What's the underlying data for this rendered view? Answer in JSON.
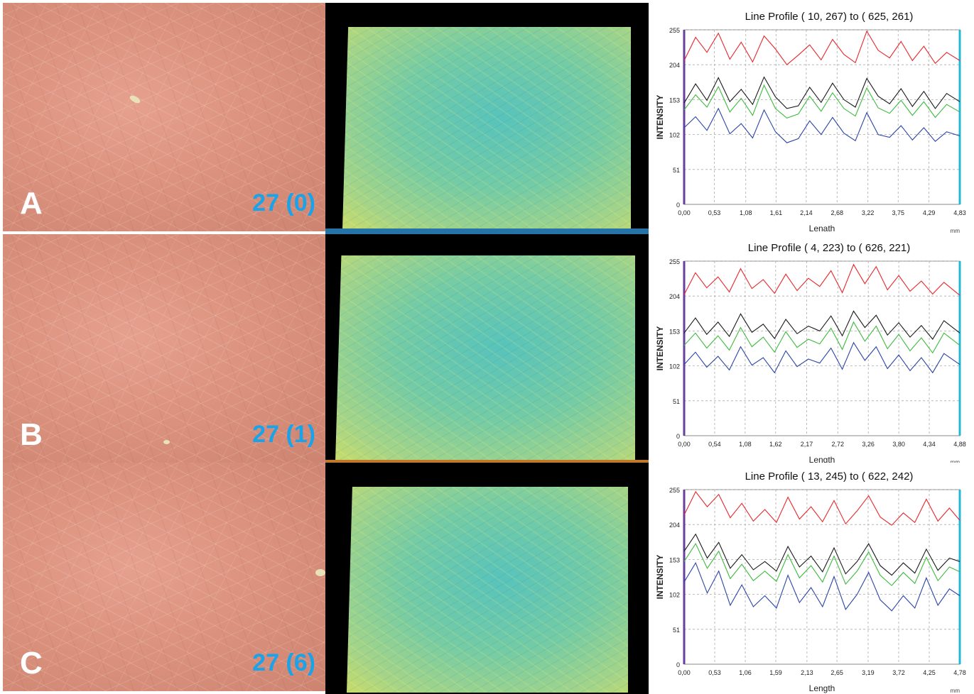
{
  "panels": [
    {
      "letter": "A",
      "sample": "27 (0)"
    },
    {
      "letter": "B",
      "sample": "27 (1)"
    },
    {
      "letter": "C",
      "sample": "27 (6)"
    }
  ],
  "colors": {
    "red_channel": "#e8262a",
    "green_channel": "#3cba3c",
    "blue_channel": "#2a44a8",
    "black_trace": "#1a1a1a",
    "label_blue": "#1aa3e8"
  },
  "chart_data": [
    {
      "type": "line",
      "title": "Line Profile ( 10, 267) to ( 625, 261)",
      "xlabel": "Lenath",
      "ylabel": "INTENSITY",
      "x_unit": "mm",
      "xticks": [
        "0,00",
        "0,53",
        "1,08",
        "1,61",
        "2,14",
        "2,68",
        "3,22",
        "3,75",
        "4,29",
        "4,83"
      ],
      "yticks": [
        "0",
        "51",
        "102",
        "153",
        "204",
        "255"
      ],
      "xlim": [
        0,
        4.83
      ],
      "ylim": [
        0,
        255
      ],
      "grid": true,
      "x": [
        0.0,
        0.2,
        0.4,
        0.6,
        0.8,
        1.0,
        1.2,
        1.4,
        1.6,
        1.8,
        2.0,
        2.2,
        2.4,
        2.6,
        2.8,
        3.0,
        3.2,
        3.4,
        3.6,
        3.8,
        4.0,
        4.2,
        4.4,
        4.6,
        4.83
      ],
      "series": [
        {
          "color": "#e8262a",
          "values": [
            210,
            244,
            222,
            250,
            212,
            237,
            208,
            246,
            227,
            204,
            218,
            233,
            211,
            241,
            219,
            207,
            253,
            225,
            214,
            238,
            210,
            231,
            206,
            222,
            210
          ]
        },
        {
          "color": "#1a1a1a",
          "values": [
            148,
            176,
            152,
            185,
            150,
            168,
            146,
            186,
            157,
            140,
            144,
            171,
            149,
            177,
            153,
            142,
            184,
            158,
            147,
            169,
            143,
            165,
            140,
            162,
            150
          ]
        },
        {
          "color": "#3cba3c",
          "values": [
            138,
            160,
            142,
            172,
            135,
            155,
            130,
            174,
            140,
            126,
            132,
            158,
            136,
            163,
            140,
            129,
            170,
            141,
            133,
            152,
            130,
            150,
            127,
            146,
            135
          ]
        },
        {
          "color": "#2a44a8",
          "values": [
            112,
            128,
            108,
            140,
            103,
            118,
            97,
            138,
            106,
            90,
            96,
            122,
            102,
            127,
            104,
            93,
            134,
            102,
            98,
            115,
            94,
            112,
            92,
            106,
            100
          ]
        }
      ]
    },
    {
      "type": "line",
      "title": "Line Profile ( 4, 223) to ( 626, 221)",
      "xlabel": "Length",
      "ylabel": "INTENSITY",
      "x_unit": "mm",
      "xticks": [
        "0,00",
        "0,54",
        "1,08",
        "1,62",
        "2,17",
        "2,72",
        "3,26",
        "3,80",
        "4,34",
        "4,88"
      ],
      "yticks": [
        "0",
        "51",
        "102",
        "153",
        "204",
        "255"
      ],
      "xlim": [
        0,
        4.88
      ],
      "ylim": [
        0,
        255
      ],
      "grid": true,
      "x": [
        0.0,
        0.2,
        0.4,
        0.6,
        0.8,
        1.0,
        1.2,
        1.4,
        1.6,
        1.8,
        2.0,
        2.2,
        2.4,
        2.6,
        2.8,
        3.0,
        3.2,
        3.4,
        3.6,
        3.8,
        4.0,
        4.2,
        4.4,
        4.6,
        4.88
      ],
      "series": [
        {
          "color": "#e8262a",
          "values": [
            206,
            238,
            216,
            232,
            210,
            244,
            215,
            228,
            208,
            236,
            212,
            230,
            218,
            241,
            209,
            250,
            222,
            247,
            213,
            234,
            211,
            226,
            207,
            224,
            205
          ]
        },
        {
          "color": "#1a1a1a",
          "values": [
            150,
            172,
            148,
            166,
            145,
            178,
            151,
            163,
            142,
            170,
            149,
            160,
            153,
            175,
            146,
            182,
            158,
            176,
            147,
            165,
            144,
            161,
            141,
            168,
            150
          ]
        },
        {
          "color": "#3cba3c",
          "values": [
            132,
            150,
            128,
            146,
            125,
            158,
            130,
            144,
            122,
            152,
            129,
            141,
            134,
            157,
            126,
            166,
            138,
            160,
            127,
            148,
            124,
            143,
            121,
            150,
            132
          ]
        },
        {
          "color": "#2a44a8",
          "values": [
            104,
            122,
            100,
            116,
            96,
            130,
            103,
            114,
            92,
            124,
            101,
            112,
            106,
            128,
            97,
            136,
            110,
            130,
            98,
            118,
            95,
            114,
            92,
            120,
            104
          ]
        }
      ]
    },
    {
      "type": "line",
      "title": "Line Profile ( 13, 245) to ( 622, 242)",
      "xlabel": "Length",
      "ylabel": "INTENSITY",
      "x_unit": "mm",
      "xticks": [
        "0,00",
        "0,53",
        "1,06",
        "1,59",
        "2,13",
        "2,65",
        "3,19",
        "3,72",
        "4,25",
        "4,78"
      ],
      "yticks": [
        "0",
        "51",
        "102",
        "153",
        "204",
        "255"
      ],
      "xlim": [
        0,
        4.78
      ],
      "ylim": [
        0,
        255
      ],
      "grid": true,
      "x": [
        0.0,
        0.2,
        0.4,
        0.6,
        0.8,
        1.0,
        1.2,
        1.4,
        1.6,
        1.8,
        2.0,
        2.2,
        2.4,
        2.6,
        2.8,
        3.0,
        3.2,
        3.4,
        3.6,
        3.8,
        4.0,
        4.2,
        4.4,
        4.6,
        4.78
      ],
      "series": [
        {
          "color": "#e8262a",
          "values": [
            218,
            252,
            230,
            248,
            214,
            235,
            209,
            226,
            207,
            244,
            212,
            230,
            208,
            239,
            205,
            224,
            246,
            215,
            203,
            221,
            207,
            241,
            209,
            228,
            210
          ]
        },
        {
          "color": "#1a1a1a",
          "values": [
            165,
            190,
            155,
            178,
            140,
            160,
            138,
            150,
            136,
            172,
            142,
            158,
            135,
            170,
            132,
            150,
            176,
            144,
            130,
            148,
            133,
            168,
            137,
            155,
            150
          ]
        },
        {
          "color": "#3cba3c",
          "values": [
            150,
            176,
            140,
            165,
            125,
            146,
            122,
            136,
            121,
            160,
            126,
            144,
            120,
            158,
            117,
            136,
            164,
            130,
            115,
            134,
            118,
            156,
            122,
            142,
            135
          ]
        },
        {
          "color": "#2a44a8",
          "values": [
            120,
            148,
            104,
            136,
            86,
            116,
            84,
            100,
            82,
            130,
            90,
            112,
            84,
            128,
            80,
            102,
            134,
            94,
            78,
            100,
            82,
            126,
            86,
            110,
            100
          ]
        }
      ]
    }
  ]
}
